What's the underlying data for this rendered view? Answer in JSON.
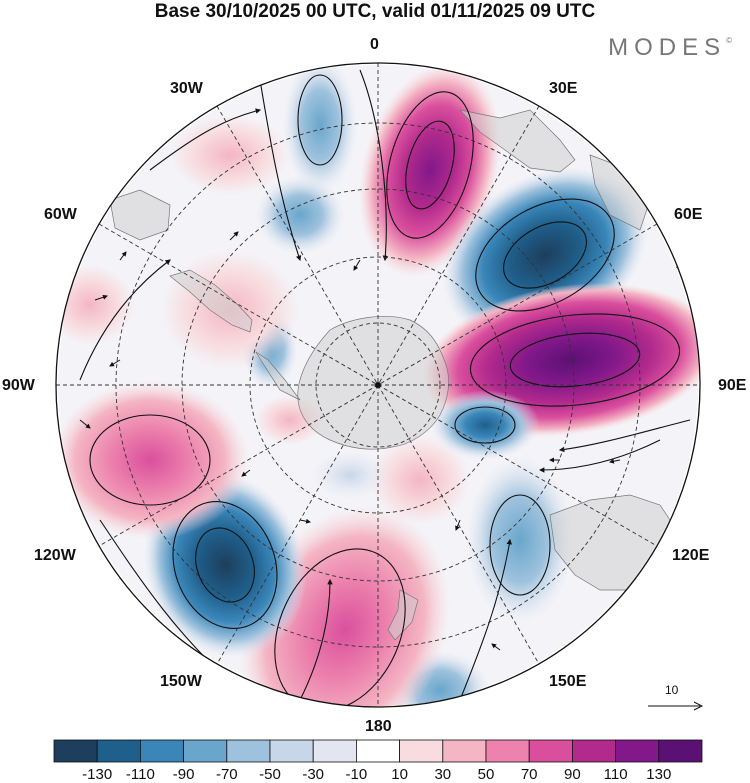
{
  "title": "Base 30/10/2025 00 UTC, valid 01/11/2025 09 UTC",
  "brand": "MODES",
  "brand_mark": "©",
  "longitude_labels": {
    "top": "0",
    "e30": "30E",
    "e60": "60E",
    "e90": "90E",
    "e120": "120E",
    "e150": "150E",
    "bottom": "180",
    "w150": "150W",
    "w120": "120W",
    "w90": "90W",
    "w60": "60W",
    "w30": "30W"
  },
  "vector_scale": "10",
  "colorbar": {
    "labels": [
      "-130",
      "-110",
      "-90",
      "-70",
      "-50",
      "-30",
      "-10",
      "10",
      "30",
      "50",
      "70",
      "90",
      "110",
      "130"
    ],
    "colors": [
      "#1d3e5c",
      "#1f5f8b",
      "#3a86b9",
      "#6aa6cc",
      "#9ec2dd",
      "#c7d6e8",
      "#e3e6f1",
      "#ffffff",
      "#f8dcdf",
      "#f4b5c4",
      "#ec82ad",
      "#da4f9d",
      "#b12a8c",
      "#82188a",
      "#5a1173"
    ]
  },
  "map": {
    "projection": "south polar stereographic",
    "anomalies": [
      {
        "name": "South Atlantic high",
        "sign": "positive"
      },
      {
        "name": "Indian Ocean low",
        "sign": "negative"
      },
      {
        "name": "Indian Ocean high",
        "sign": "positive"
      },
      {
        "name": "South Pacific low",
        "sign": "negative"
      },
      {
        "name": "New Zealand high",
        "sign": "positive"
      }
    ]
  }
}
